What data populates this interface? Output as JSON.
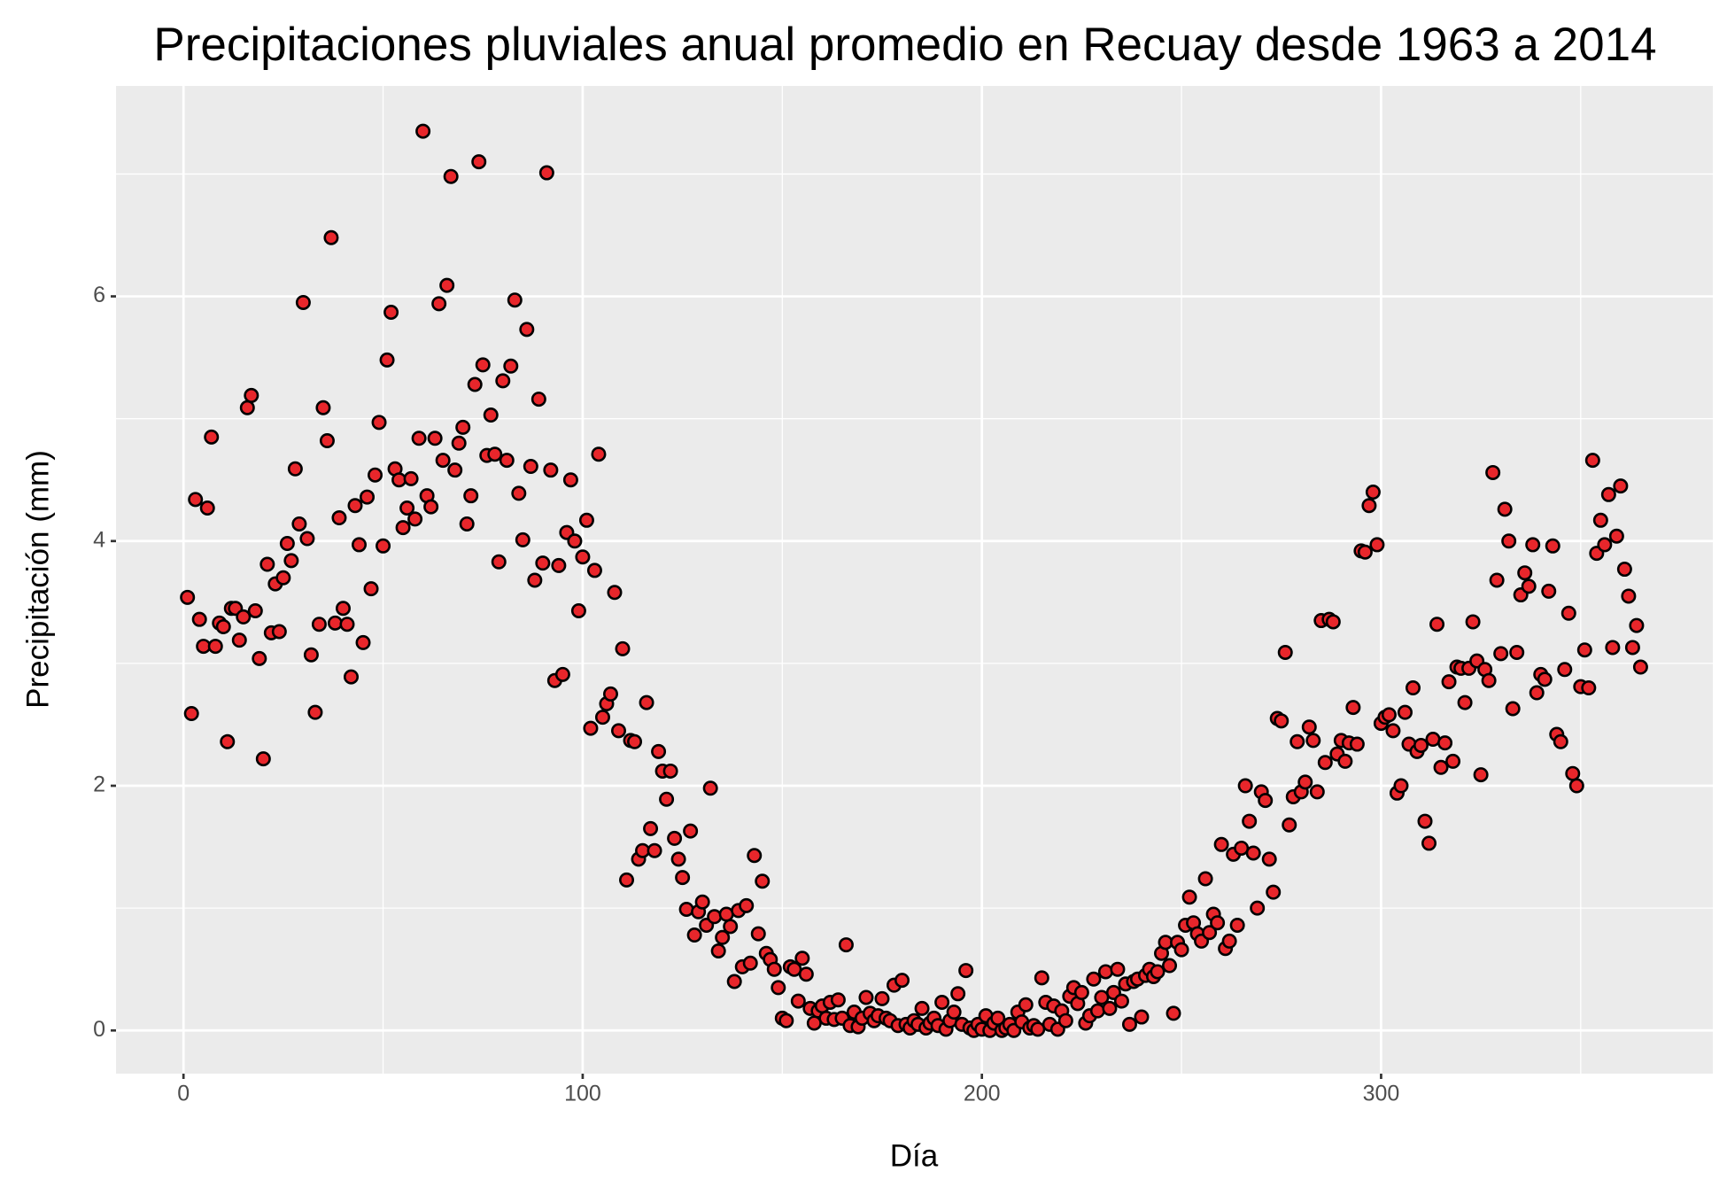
{
  "chart_data": {
    "type": "scatter",
    "title": "Precipitaciones pluviales anual promedio en Recuay desde 1963 a 2014",
    "x_label": "Día",
    "y_label": "Precipitación (mm)",
    "xlim": [
      -16.9,
      383.1
    ],
    "ylim": [
      -0.353,
      7.72
    ],
    "xticks": [
      0,
      100,
      200,
      300
    ],
    "yticks": [
      0,
      2,
      4,
      6
    ],
    "x_minor_ticks": [
      50,
      150,
      250,
      350
    ],
    "y_minor_ticks": [
      1,
      3,
      5,
      7
    ],
    "grid": true,
    "point_color": "#e8262b",
    "point_edge": "#000000",
    "x": [
      1,
      2,
      3,
      4,
      5,
      6,
      7,
      8,
      9,
      10,
      11,
      12,
      13,
      14,
      15,
      16,
      17,
      18,
      19,
      20,
      21,
      22,
      23,
      24,
      25,
      26,
      27,
      28,
      29,
      30,
      31,
      32,
      33,
      34,
      35,
      36,
      37,
      38,
      39,
      40,
      41,
      42,
      43,
      44,
      45,
      46,
      47,
      48,
      49,
      50,
      51,
      52,
      53,
      54,
      55,
      56,
      57,
      58,
      59,
      60,
      61,
      62,
      63,
      64,
      65,
      66,
      67,
      68,
      69,
      70,
      71,
      72,
      73,
      74,
      75,
      76,
      77,
      78,
      79,
      80,
      81,
      82,
      83,
      84,
      85,
      86,
      87,
      88,
      89,
      90,
      91,
      92,
      93,
      94,
      95,
      96,
      97,
      98,
      99,
      100,
      101,
      102,
      103,
      104,
      105,
      106,
      107,
      108,
      109,
      110,
      111,
      112,
      113,
      114,
      115,
      116,
      117,
      118,
      119,
      120,
      121,
      122,
      123,
      124,
      125,
      126,
      127,
      128,
      129,
      130,
      131,
      132,
      133,
      134,
      135,
      136,
      137,
      138,
      139,
      140,
      141,
      142,
      143,
      144,
      145,
      146,
      147,
      148,
      149,
      150,
      151,
      152,
      153,
      154,
      155,
      156,
      157,
      158,
      159,
      160,
      161,
      162,
      163,
      164,
      165,
      166,
      167,
      168,
      169,
      170,
      171,
      172,
      173,
      174,
      175,
      176,
      177,
      178,
      179,
      180,
      181,
      182,
      183,
      184,
      185,
      186,
      187,
      188,
      189,
      190,
      191,
      192,
      193,
      194,
      195,
      196,
      197,
      198,
      199,
      200,
      201,
      202,
      203,
      204,
      205,
      206,
      207,
      208,
      209,
      210,
      211,
      212,
      213,
      214,
      215,
      216,
      217,
      218,
      219,
      220,
      221,
      222,
      223,
      224,
      225,
      226,
      227,
      228,
      229,
      230,
      231,
      232,
      233,
      234,
      235,
      236,
      237,
      238,
      239,
      240,
      241,
      242,
      243,
      244,
      245,
      246,
      247,
      248,
      249,
      250,
      251,
      252,
      253,
      254,
      255,
      256,
      257,
      258,
      259,
      260,
      261,
      262,
      263,
      264,
      265,
      266,
      267,
      268,
      269,
      270,
      271,
      272,
      273,
      274,
      275,
      276,
      277,
      278,
      279,
      280,
      281,
      282,
      283,
      284,
      285,
      286,
      287,
      288,
      289,
      290,
      291,
      292,
      293,
      294,
      295,
      296,
      297,
      298,
      299,
      300,
      301,
      302,
      303,
      304,
      305,
      306,
      307,
      308,
      309,
      310,
      311,
      312,
      313,
      314,
      315,
      316,
      317,
      318,
      319,
      320,
      321,
      322,
      323,
      324,
      325,
      326,
      327,
      328,
      329,
      330,
      331,
      332,
      333,
      334,
      335,
      336,
      337,
      338,
      339,
      340,
      341,
      342,
      343,
      344,
      345,
      346,
      347,
      348,
      349,
      350,
      351,
      352,
      353,
      354,
      355,
      356,
      357,
      358,
      359,
      360,
      361,
      362,
      363,
      364,
      365
    ],
    "values": [
      3.54,
      2.59,
      4.34,
      3.36,
      3.14,
      4.27,
      4.85,
      3.14,
      3.33,
      3.3,
      2.36,
      3.45,
      3.45,
      3.19,
      3.38,
      5.09,
      5.19,
      3.43,
      3.04,
      2.22,
      3.81,
      3.25,
      3.65,
      3.26,
      3.7,
      3.98,
      3.84,
      4.59,
      4.14,
      5.95,
      4.02,
      3.07,
      2.6,
      3.32,
      5.09,
      4.82,
      6.48,
      3.33,
      4.19,
      3.45,
      3.32,
      2.89,
      4.29,
      3.97,
      3.17,
      4.36,
      3.61,
      4.54,
      4.97,
      3.96,
      5.48,
      5.87,
      4.59,
      4.5,
      4.11,
      4.27,
      4.51,
      4.18,
      4.84,
      7.35,
      4.37,
      4.28,
      4.84,
      5.94,
      4.66,
      6.09,
      6.98,
      4.58,
      4.8,
      4.93,
      4.14,
      4.37,
      5.28,
      7.1,
      5.44,
      4.7,
      5.03,
      4.71,
      3.83,
      5.31,
      4.66,
      5.43,
      5.97,
      4.39,
      4.01,
      5.73,
      4.61,
      3.68,
      5.16,
      3.82,
      7.01,
      4.58,
      2.86,
      3.8,
      2.91,
      4.07,
      4.5,
      4.0,
      3.43,
      3.87,
      4.17,
      2.47,
      3.76,
      4.71,
      2.56,
      2.67,
      2.75,
      3.58,
      2.45,
      3.12,
      1.23,
      2.37,
      2.36,
      1.4,
      1.47,
      2.68,
      1.65,
      1.47,
      2.28,
      2.12,
      1.89,
      2.12,
      1.57,
      1.4,
      1.25,
      0.99,
      1.63,
      0.78,
      0.97,
      1.05,
      0.86,
      1.98,
      0.93,
      0.65,
      0.76,
      0.95,
      0.85,
      0.4,
      0.98,
      0.52,
      1.02,
      0.55,
      1.43,
      0.79,
      1.22,
      0.63,
      0.58,
      0.5,
      0.35,
      0.1,
      0.08,
      0.52,
      0.5,
      0.24,
      0.59,
      0.46,
      0.18,
      0.06,
      0.16,
      0.2,
      0.1,
      0.23,
      0.09,
      0.25,
      0.1,
      0.7,
      0.04,
      0.15,
      0.03,
      0.1,
      0.27,
      0.14,
      0.08,
      0.12,
      0.26,
      0.1,
      0.08,
      0.37,
      0.04,
      0.41,
      0.05,
      0.02,
      0.08,
      0.05,
      0.18,
      0.02,
      0.06,
      0.1,
      0.04,
      0.23,
      0.01,
      0.08,
      0.15,
      0.3,
      0.05,
      0.49,
      0.02,
      0.0,
      0.05,
      0.01,
      0.12,
      0.0,
      0.06,
      0.1,
      0.0,
      0.02,
      0.05,
      0.0,
      0.15,
      0.07,
      0.21,
      0.02,
      0.04,
      0.01,
      0.43,
      0.23,
      0.05,
      0.2,
      0.01,
      0.16,
      0.08,
      0.28,
      0.35,
      0.22,
      0.31,
      0.06,
      0.12,
      0.42,
      0.16,
      0.27,
      0.48,
      0.18,
      0.31,
      0.5,
      0.24,
      0.38,
      0.05,
      0.4,
      0.42,
      0.11,
      0.45,
      0.5,
      0.44,
      0.48,
      0.63,
      0.72,
      0.53,
      0.14,
      0.72,
      0.66,
      0.86,
      1.09,
      0.88,
      0.79,
      0.73,
      1.24,
      0.8,
      0.95,
      0.88,
      1.52,
      0.67,
      0.73,
      1.44,
      0.86,
      1.49,
      2.0,
      1.71,
      1.45,
      1.0,
      1.95,
      1.88,
      1.4,
      1.13,
      2.55,
      2.53,
      3.09,
      1.68,
      1.91,
      2.36,
      1.95,
      2.03,
      2.48,
      2.37,
      1.95,
      3.35,
      2.19,
      3.36,
      3.34,
      2.26,
      2.37,
      2.2,
      2.35,
      2.64,
      2.34,
      3.92,
      3.91,
      4.29,
      4.4,
      3.97,
      2.51,
      2.56,
      2.58,
      2.45,
      1.94,
      2.0,
      2.6,
      2.34,
      2.8,
      2.28,
      2.33,
      1.71,
      1.53,
      2.38,
      3.32,
      2.15,
      2.35,
      2.85,
      2.2,
      2.97,
      2.96,
      2.68,
      2.96,
      3.34,
      3.02,
      2.09,
      2.95,
      2.86,
      4.56,
      3.68,
      3.08,
      4.26,
      4.0,
      2.63,
      3.09,
      3.56,
      3.74,
      3.63,
      3.97,
      2.76,
      2.91,
      2.87,
      3.59,
      3.96,
      2.42,
      2.36,
      2.95,
      3.41,
      2.1,
      2.0,
      2.81,
      3.11,
      2.8,
      4.66,
      3.9,
      4.17,
      3.97,
      4.38,
      3.13,
      4.04,
      4.45,
      3.77,
      3.55,
      3.13,
      3.31,
      2.97
    ]
  }
}
